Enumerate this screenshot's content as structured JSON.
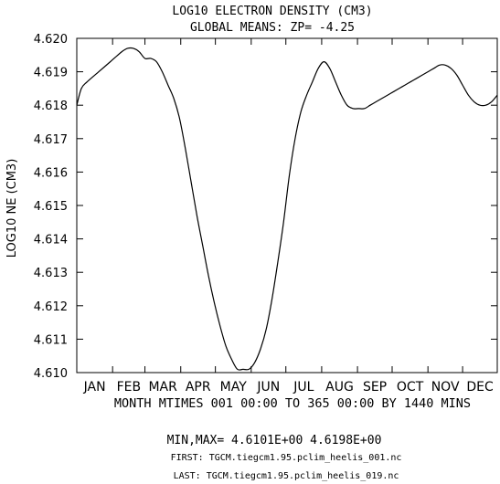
{
  "chart_data": {
    "type": "line",
    "title": "LOG10 ELECTRON DENSITY (CM3)",
    "subtitle": "GLOBAL MEANS: ZP= -4.25",
    "ylabel": "LOG10 NE (CM3)",
    "xlabel": "MONTH MTIMES 001 00:00 TO 365 00:00 BY 1440 MINS",
    "ylim": [
      4.61,
      4.62
    ],
    "xlim": [
      1,
      365
    ],
    "yticks": [
      "4.610",
      "4.611",
      "4.612",
      "4.613",
      "4.614",
      "4.615",
      "4.616",
      "4.617",
      "4.618",
      "4.619",
      "4.620"
    ],
    "months": [
      "JAN",
      "FEB",
      "MAR",
      "APR",
      "MAY",
      "JUN",
      "JUL",
      "AUG",
      "SEP",
      "OCT",
      "NOV",
      "DEC"
    ],
    "grid": false,
    "series": [
      {
        "x": [
          1,
          5,
          10,
          20,
          30,
          40,
          45,
          50,
          55,
          60,
          65,
          70,
          75,
          80,
          85,
          90,
          95,
          100,
          105,
          110,
          115,
          120,
          125,
          130,
          135,
          140,
          145,
          150,
          155,
          160,
          165,
          170,
          175,
          180,
          185,
          190,
          195,
          200,
          205,
          210,
          215,
          220,
          225,
          230,
          235,
          240,
          245,
          250,
          255,
          260,
          265,
          270,
          275,
          280,
          285,
          290,
          295,
          300,
          305,
          310,
          315,
          320,
          325,
          330,
          335,
          340,
          345,
          350,
          355,
          360,
          365
        ],
        "y": [
          4.618,
          4.6185,
          4.6187,
          4.619,
          4.6193,
          4.6196,
          4.6197,
          4.6197,
          4.6196,
          4.6194,
          4.6194,
          4.6193,
          4.619,
          4.6186,
          4.6182,
          4.6176,
          4.6167,
          4.6157,
          4.6147,
          4.6138,
          4.6129,
          4.6121,
          4.6114,
          4.6108,
          4.6104,
          4.6101,
          4.6101,
          4.6101,
          4.6103,
          4.6107,
          4.6113,
          4.6122,
          4.6133,
          4.6145,
          4.6159,
          4.617,
          4.6178,
          4.6183,
          4.6187,
          4.6191,
          4.6193,
          4.6191,
          4.6187,
          4.6183,
          4.618,
          4.6179,
          4.6179,
          4.6179,
          4.618,
          4.6181,
          4.6182,
          4.6183,
          4.6184,
          4.6185,
          4.6186,
          4.6187,
          4.6188,
          4.6189,
          4.619,
          4.6191,
          4.6192,
          4.6192,
          4.6191,
          4.6189,
          4.6186,
          4.6183,
          4.6181,
          4.618,
          4.618,
          4.6181,
          4.6183
        ]
      }
    ],
    "footer": {
      "minmax": "MIN,MAX=  4.6101E+00  4.6198E+00",
      "first": "FIRST: TGCM.tiegcm1.95.pclim_heelis_001.nc",
      "last": "LAST:  TGCM.tiegcm1.95.pclim_heelis_019.nc"
    }
  }
}
